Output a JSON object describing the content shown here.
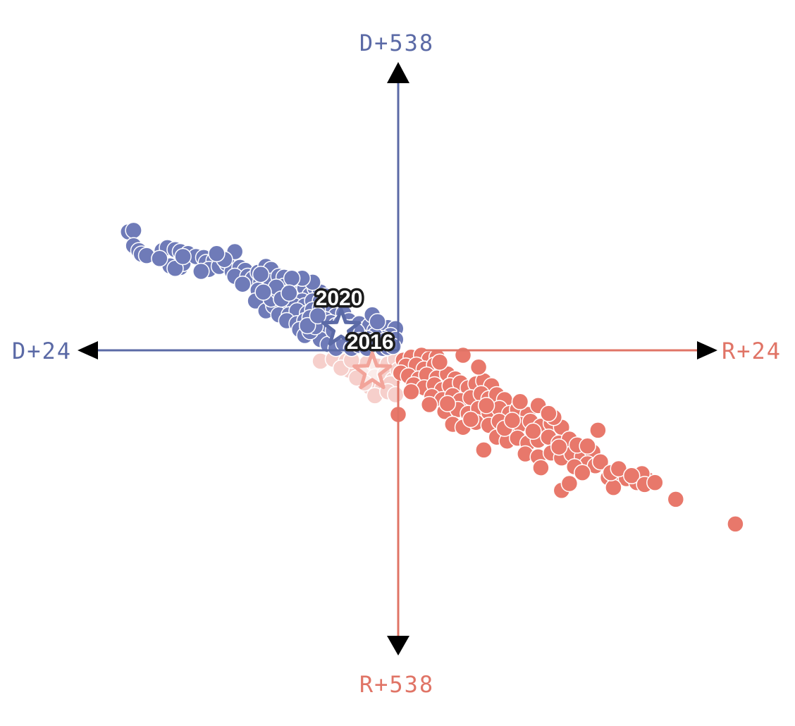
{
  "chart_data": {
    "type": "scatter",
    "title": "",
    "axis_labels": {
      "top": "D+538",
      "bottom": "R+538",
      "left": "D+24",
      "right": "R+24"
    },
    "xlim": [
      -24,
      24
    ],
    "ylim": [
      -538,
      538
    ],
    "colors": {
      "dem": "#6f7bb8",
      "dem_axis": "#5b6aa6",
      "rep": "#e8786b",
      "rep_axis": "#e07466",
      "rep_faded": "#f6cfcb",
      "arrow": "#000000"
    },
    "markers": [
      {
        "label": "2020",
        "x": -4.4,
        "y": 44,
        "color": "#5b6aa6"
      },
      {
        "label": "2016",
        "x": -2.0,
        "y": -44,
        "color": "#f2a49a"
      }
    ],
    "series": [
      {
        "party": "D",
        "color": "#6f7bb8",
        "points": [
          [
            -20.8,
            240
          ],
          [
            -20.4,
            243
          ],
          [
            -20.4,
            212
          ],
          [
            -20.0,
            202
          ],
          [
            -19.8,
            195
          ],
          [
            -19.4,
            192
          ],
          [
            -18.2,
            202
          ],
          [
            -17.8,
            208
          ],
          [
            -17.2,
            204
          ],
          [
            -16.8,
            200
          ],
          [
            -16.2,
            196
          ],
          [
            -17.6,
            171
          ],
          [
            -16.8,
            168
          ],
          [
            -16.6,
            176
          ],
          [
            -17.2,
            166
          ],
          [
            -15.6,
            190
          ],
          [
            -15.0,
            188
          ],
          [
            -14.8,
            178
          ],
          [
            -14.2,
            182
          ],
          [
            -14.6,
            164
          ],
          [
            -13.8,
            170
          ],
          [
            -13.2,
            176
          ],
          [
            -12.8,
            160
          ],
          [
            -12.2,
            168
          ],
          [
            -11.8,
            162
          ],
          [
            -12.6,
            150
          ],
          [
            -11.6,
            150
          ],
          [
            -11.2,
            145
          ],
          [
            -10.8,
            158
          ],
          [
            -10.2,
            170
          ],
          [
            -9.8,
            164
          ],
          [
            -10.6,
            138
          ],
          [
            -9.8,
            140
          ],
          [
            -9.2,
            150
          ],
          [
            -8.8,
            148
          ],
          [
            -12.0,
            134
          ],
          [
            -10.8,
            122
          ],
          [
            -10.2,
            112
          ],
          [
            -11.0,
            100
          ],
          [
            -10.2,
            80
          ],
          [
            -9.6,
            90
          ],
          [
            -9.8,
            104
          ],
          [
            -9.2,
            118
          ],
          [
            -8.8,
            130
          ],
          [
            -8.6,
            110
          ],
          [
            -8.2,
            122
          ],
          [
            -7.8,
            135
          ],
          [
            -7.6,
            116
          ],
          [
            -7.2,
            126
          ],
          [
            -6.8,
            112
          ],
          [
            -6.4,
            126
          ],
          [
            -6.0,
            118
          ],
          [
            -7.4,
            100
          ],
          [
            -8.6,
            96
          ],
          [
            -8.0,
            90
          ],
          [
            -7.2,
            90
          ],
          [
            -6.6,
            100
          ],
          [
            -6.0,
            100
          ],
          [
            -5.6,
            110
          ],
          [
            -5.4,
            95
          ],
          [
            -9.2,
            72
          ],
          [
            -8.4,
            72
          ],
          [
            -7.8,
            80
          ],
          [
            -7.0,
            75
          ],
          [
            -6.6,
            82
          ],
          [
            -6.0,
            86
          ],
          [
            -5.6,
            76
          ],
          [
            -5.0,
            84
          ],
          [
            -4.8,
            70
          ],
          [
            -4.2,
            75
          ],
          [
            -8.6,
            60
          ],
          [
            -7.8,
            54
          ],
          [
            -7.2,
            60
          ],
          [
            -6.8,
            66
          ],
          [
            -6.2,
            60
          ],
          [
            -5.6,
            62
          ],
          [
            -5.2,
            56
          ],
          [
            -4.8,
            50
          ],
          [
            -4.4,
            56
          ],
          [
            -3.8,
            60
          ],
          [
            -3.6,
            46
          ],
          [
            -3.0,
            54
          ],
          [
            -2.6,
            42
          ],
          [
            -2.2,
            50
          ],
          [
            -1.8,
            40
          ],
          [
            -1.4,
            48
          ],
          [
            -1.0,
            36
          ],
          [
            -0.8,
            46
          ],
          [
            -0.2,
            44
          ],
          [
            -0.6,
            30
          ],
          [
            -1.2,
            24
          ],
          [
            -1.8,
            30
          ],
          [
            -2.4,
            24
          ],
          [
            -3.0,
            30
          ],
          [
            -3.4,
            20
          ],
          [
            -4.0,
            26
          ],
          [
            -4.6,
            32
          ],
          [
            -5.2,
            30
          ],
          [
            -5.8,
            40
          ],
          [
            -6.0,
            22
          ],
          [
            -5.4,
            12
          ],
          [
            -4.8,
            4
          ],
          [
            -4.2,
            14
          ],
          [
            -3.6,
            4
          ],
          [
            -3.0,
            10
          ],
          [
            -2.4,
            4
          ],
          [
            -1.8,
            12
          ],
          [
            -1.2,
            4
          ],
          [
            -0.6,
            16
          ],
          [
            -0.2,
            22
          ],
          [
            -0.8,
            6
          ],
          [
            -2.0,
            18
          ],
          [
            -3.2,
            38
          ],
          [
            -4.4,
            40
          ],
          [
            -2.0,
            72
          ],
          [
            -7.6,
            42
          ],
          [
            -7.2,
            30
          ],
          [
            -6.8,
            38
          ],
          [
            -6.4,
            48
          ],
          [
            -7.0,
            50
          ],
          [
            -6.6,
            138
          ],
          [
            -7.4,
            146
          ],
          [
            -8.2,
            146
          ],
          [
            -9.4,
            128
          ],
          [
            -10.6,
            154
          ],
          [
            -12.6,
            200
          ],
          [
            -13.4,
            184
          ],
          [
            -14.0,
            196
          ],
          [
            -15.2,
            160
          ],
          [
            -16.6,
            190
          ],
          [
            -18.4,
            186
          ],
          [
            -10.4,
            118
          ],
          [
            -9.0,
            104
          ],
          [
            -8.4,
            116
          ],
          [
            -6.2,
            70
          ],
          [
            -5.0,
            40
          ],
          [
            -4.0,
            46
          ],
          [
            -3.0,
            20
          ],
          [
            -1.6,
            58
          ],
          [
            -1.0,
            20
          ],
          [
            -0.4,
            8
          ]
        ]
      },
      {
        "party": "R",
        "color": "#e8786b",
        "points": [
          [
            0.4,
            -20
          ],
          [
            1.0,
            -14
          ],
          [
            1.8,
            -10
          ],
          [
            2.4,
            -18
          ],
          [
            3.0,
            -14
          ],
          [
            0.6,
            -32
          ],
          [
            1.4,
            -30
          ],
          [
            2.0,
            -38
          ],
          [
            2.8,
            -30
          ],
          [
            3.4,
            -40
          ],
          [
            0.2,
            -46
          ],
          [
            0.8,
            -52
          ],
          [
            1.6,
            -58
          ],
          [
            2.2,
            -50
          ],
          [
            3.0,
            -56
          ],
          [
            3.8,
            -48
          ],
          [
            4.4,
            -58
          ],
          [
            1.2,
            -70
          ],
          [
            2.0,
            -76
          ],
          [
            2.8,
            -70
          ],
          [
            3.4,
            -80
          ],
          [
            4.0,
            -72
          ],
          [
            4.8,
            -66
          ],
          [
            5.4,
            -76
          ],
          [
            6.0,
            -68
          ],
          [
            6.6,
            -62
          ],
          [
            7.2,
            -72
          ],
          [
            2.6,
            -94
          ],
          [
            3.4,
            -100
          ],
          [
            4.2,
            -92
          ],
          [
            4.8,
            -102
          ],
          [
            5.6,
            -96
          ],
          [
            6.4,
            -88
          ],
          [
            7.0,
            -98
          ],
          [
            7.6,
            -90
          ],
          [
            8.2,
            -100
          ],
          [
            0.0,
            -130
          ],
          [
            3.6,
            -124
          ],
          [
            4.6,
            -120
          ],
          [
            5.4,
            -128
          ],
          [
            6.2,
            -118
          ],
          [
            7.0,
            -126
          ],
          [
            7.8,
            -118
          ],
          [
            8.6,
            -128
          ],
          [
            9.2,
            -120
          ],
          [
            10.0,
            -130
          ],
          [
            4.2,
            -150
          ],
          [
            5.0,
            -156
          ],
          [
            6.0,
            -146
          ],
          [
            7.0,
            -152
          ],
          [
            7.8,
            -144
          ],
          [
            8.6,
            -156
          ],
          [
            9.4,
            -150
          ],
          [
            10.2,
            -144
          ],
          [
            11.0,
            -154
          ],
          [
            11.8,
            -148
          ],
          [
            12.6,
            -156
          ],
          [
            7.6,
            -176
          ],
          [
            8.4,
            -184
          ],
          [
            9.2,
            -178
          ],
          [
            10.0,
            -188
          ],
          [
            10.8,
            -182
          ],
          [
            11.6,
            -176
          ],
          [
            12.4,
            -188
          ],
          [
            13.2,
            -180
          ],
          [
            9.8,
            -210
          ],
          [
            10.8,
            -216
          ],
          [
            11.8,
            -208
          ],
          [
            12.6,
            -218
          ],
          [
            13.4,
            -210
          ],
          [
            14.2,
            -216
          ],
          [
            15.0,
            -206
          ],
          [
            14.6,
            -230
          ],
          [
            15.2,
            -234
          ],
          [
            13.6,
            -236
          ],
          [
            16.2,
            -258
          ],
          [
            16.8,
            -266
          ],
          [
            17.6,
            -260
          ],
          [
            18.4,
            -268
          ],
          [
            19.2,
            -262
          ],
          [
            18.8,
            -250
          ],
          [
            16.6,
            -278
          ],
          [
            21.4,
            -302
          ],
          [
            12.6,
            -284
          ],
          [
            13.2,
            -270
          ],
          [
            11.0,
            -238
          ],
          [
            8.2,
            -158
          ],
          [
            15.4,
            -162
          ],
          [
            6.6,
            -202
          ],
          [
            10.4,
            -164
          ],
          [
            12.0,
            -136
          ],
          [
            5.6,
            -140
          ],
          [
            9.4,
            -104
          ],
          [
            10.8,
            -112
          ],
          [
            11.6,
            -128
          ],
          [
            12.4,
            -196
          ],
          [
            13.8,
            -192
          ],
          [
            14.6,
            -194
          ],
          [
            15.6,
            -226
          ],
          [
            16.4,
            -248
          ],
          [
            17.0,
            -240
          ],
          [
            18.0,
            -254
          ],
          [
            19.0,
            -272
          ],
          [
            19.8,
            -268
          ],
          [
            14.2,
            -248
          ],
          [
            26.0,
            -352
          ],
          [
            3.2,
            -24
          ],
          [
            5.0,
            -10
          ],
          [
            6.2,
            -34
          ],
          [
            1.0,
            -84
          ],
          [
            2.4,
            -110
          ],
          [
            8.8,
            -142
          ],
          [
            6.8,
            -112
          ],
          [
            3.8,
            -108
          ]
        ]
      },
      {
        "party": "R-2016",
        "color": "#f6cfcb",
        "points": [
          [
            -6.0,
            -22
          ],
          [
            -5.0,
            -18
          ],
          [
            -4.0,
            -22
          ],
          [
            -3.2,
            -30
          ],
          [
            -2.4,
            -26
          ],
          [
            -1.6,
            -32
          ],
          [
            -0.8,
            -28
          ],
          [
            -0.2,
            -18
          ],
          [
            -3.8,
            -40
          ],
          [
            -2.8,
            -48
          ],
          [
            -1.8,
            -54
          ],
          [
            -1.0,
            -48
          ],
          [
            -0.4,
            -60
          ],
          [
            -2.2,
            -74
          ],
          [
            -1.2,
            -76
          ],
          [
            -0.6,
            -68
          ],
          [
            -1.8,
            -92
          ],
          [
            -0.8,
            -84
          ],
          [
            -2.6,
            -66
          ],
          [
            -3.2,
            -56
          ],
          [
            -4.4,
            -36
          ],
          [
            0.0,
            -40
          ],
          [
            -0.2,
            -90
          ],
          [
            -3.6,
            -20
          ]
        ]
      }
    ]
  }
}
